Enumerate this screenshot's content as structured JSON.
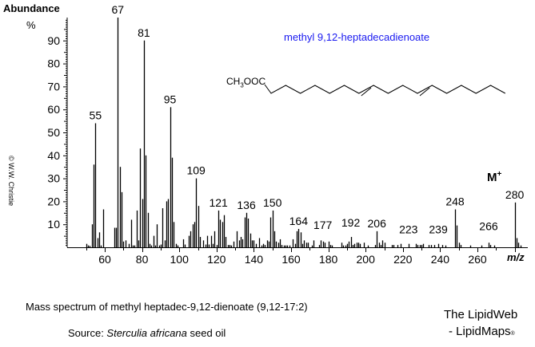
{
  "header": {
    "y_axis_title": "Abundance",
    "y_axis_unit": "%",
    "compound_name": "methyl 9,12-heptadecadienoate",
    "structure_prefix": "CH",
    "structure_sub": "3",
    "structure_suffix": "OOC",
    "copyright": "© W.W. Christie"
  },
  "annotations": {
    "molecular_ion_label": "M",
    "molecular_ion_sup": "+",
    "x_axis_label": "m/z"
  },
  "footer": {
    "caption": "Mass spectrum of methyl heptadec-9,12-dienoate (9,12-17:2)",
    "source_prefix": "Source:  ",
    "source_species": "Sterculia africana",
    "source_suffix": " seed oil",
    "brand_line1": "The LipidWeb",
    "brand_line2": "- LipidMaps",
    "brand_mark": "®"
  },
  "colors": {
    "compound_name": "#1a1af0",
    "bars": "#000000",
    "axis": "#000000"
  },
  "chart_data": {
    "type": "bar",
    "title": "Mass spectrum of methyl heptadec-9,12-dienoate (9,12-17:2)",
    "xlabel": "m/z",
    "ylabel": "Abundance %",
    "xlim": [
      40,
      287
    ],
    "ylim": [
      0,
      100
    ],
    "x_ticks": [
      60,
      80,
      100,
      120,
      140,
      160,
      180,
      200,
      220,
      240,
      260
    ],
    "y_ticks": [
      10,
      20,
      30,
      40,
      50,
      60,
      70,
      80,
      90
    ],
    "grid": false,
    "labeled_peaks": [
      55,
      67,
      81,
      95,
      109,
      121,
      136,
      150,
      164,
      177,
      192,
      206,
      223,
      239,
      248,
      266,
      280
    ],
    "peaks": [
      {
        "mz": 50,
        "ab": 1.5
      },
      {
        "mz": 51,
        "ab": 0.8
      },
      {
        "mz": 52,
        "ab": 0.6
      },
      {
        "mz": 53,
        "ab": 10
      },
      {
        "mz": 54,
        "ab": 36
      },
      {
        "mz": 55,
        "ab": 54
      },
      {
        "mz": 56,
        "ab": 4
      },
      {
        "mz": 57,
        "ab": 6.5
      },
      {
        "mz": 58,
        "ab": 0.8
      },
      {
        "mz": 59,
        "ab": 16.5
      },
      {
        "mz": 65,
        "ab": 8.5
      },
      {
        "mz": 66,
        "ab": 8.5
      },
      {
        "mz": 67,
        "ab": 100
      },
      {
        "mz": 68,
        "ab": 35
      },
      {
        "mz": 69,
        "ab": 24
      },
      {
        "mz": 70,
        "ab": 2.5
      },
      {
        "mz": 71,
        "ab": 3
      },
      {
        "mz": 73,
        "ab": 1.5
      },
      {
        "mz": 74,
        "ab": 12
      },
      {
        "mz": 75,
        "ab": 0.8
      },
      {
        "mz": 76,
        "ab": 0.8
      },
      {
        "mz": 77,
        "ab": 16
      },
      {
        "mz": 78,
        "ab": 3
      },
      {
        "mz": 79,
        "ab": 43
      },
      {
        "mz": 80,
        "ab": 21
      },
      {
        "mz": 81,
        "ab": 90
      },
      {
        "mz": 82,
        "ab": 40
      },
      {
        "mz": 83,
        "ab": 15
      },
      {
        "mz": 84,
        "ab": 1.5
      },
      {
        "mz": 85,
        "ab": 0.8
      },
      {
        "mz": 86,
        "ab": 5
      },
      {
        "mz": 87,
        "ab": 0.8
      },
      {
        "mz": 88,
        "ab": 10
      },
      {
        "mz": 89,
        "ab": 0.8
      },
      {
        "mz": 90,
        "ab": 1.2
      },
      {
        "mz": 91,
        "ab": 17
      },
      {
        "mz": 92,
        "ab": 3
      },
      {
        "mz": 93,
        "ab": 20
      },
      {
        "mz": 94,
        "ab": 21
      },
      {
        "mz": 95,
        "ab": 61
      },
      {
        "mz": 96,
        "ab": 39
      },
      {
        "mz": 97,
        "ab": 11
      },
      {
        "mz": 98,
        "ab": 1.5
      },
      {
        "mz": 99,
        "ab": 0.8
      },
      {
        "mz": 102,
        "ab": 3.5
      },
      {
        "mz": 103,
        "ab": 1.2
      },
      {
        "mz": 105,
        "ab": 5
      },
      {
        "mz": 106,
        "ab": 7
      },
      {
        "mz": 107,
        "ab": 10
      },
      {
        "mz": 108,
        "ab": 11
      },
      {
        "mz": 109,
        "ab": 30
      },
      {
        "mz": 110,
        "ab": 18
      },
      {
        "mz": 111,
        "ab": 4.5
      },
      {
        "mz": 113,
        "ab": 3
      },
      {
        "mz": 114,
        "ab": 1.2
      },
      {
        "mz": 115,
        "ab": 5
      },
      {
        "mz": 116,
        "ab": 1.2
      },
      {
        "mz": 117,
        "ab": 5
      },
      {
        "mz": 118,
        "ab": 1.5
      },
      {
        "mz": 119,
        "ab": 7
      },
      {
        "mz": 120,
        "ab": 1
      },
      {
        "mz": 121,
        "ab": 16
      },
      {
        "mz": 122,
        "ab": 12
      },
      {
        "mz": 123,
        "ab": 11
      },
      {
        "mz": 124,
        "ab": 14
      },
      {
        "mz": 125,
        "ab": 4.5
      },
      {
        "mz": 126,
        "ab": 1
      },
      {
        "mz": 127,
        "ab": 1
      },
      {
        "mz": 128,
        "ab": 0.8
      },
      {
        "mz": 129,
        "ab": 2.5
      },
      {
        "mz": 131,
        "ab": 7
      },
      {
        "mz": 132,
        "ab": 3
      },
      {
        "mz": 133,
        "ab": 4.5
      },
      {
        "mz": 134,
        "ab": 3.5
      },
      {
        "mz": 135,
        "ab": 13
      },
      {
        "mz": 136,
        "ab": 15
      },
      {
        "mz": 137,
        "ab": 12.5
      },
      {
        "mz": 138,
        "ab": 6
      },
      {
        "mz": 139,
        "ab": 3
      },
      {
        "mz": 140,
        "ab": 3
      },
      {
        "mz": 141,
        "ab": 1.5
      },
      {
        "mz": 143,
        "ab": 4
      },
      {
        "mz": 144,
        "ab": 0.8
      },
      {
        "mz": 145,
        "ab": 1.5
      },
      {
        "mz": 146,
        "ab": 1
      },
      {
        "mz": 147,
        "ab": 3
      },
      {
        "mz": 148,
        "ab": 2.5
      },
      {
        "mz": 149,
        "ab": 13
      },
      {
        "mz": 150,
        "ab": 16
      },
      {
        "mz": 151,
        "ab": 7
      },
      {
        "mz": 152,
        "ab": 2.5
      },
      {
        "mz": 153,
        "ab": 2
      },
      {
        "mz": 154,
        "ab": 3.5
      },
      {
        "mz": 155,
        "ab": 1
      },
      {
        "mz": 156,
        "ab": 0.8
      },
      {
        "mz": 157,
        "ab": 0.8
      },
      {
        "mz": 158,
        "ab": 0.8
      },
      {
        "mz": 159,
        "ab": 0.8
      },
      {
        "mz": 161,
        "ab": 3.5
      },
      {
        "mz": 162,
        "ab": 1.5
      },
      {
        "mz": 163,
        "ab": 7
      },
      {
        "mz": 164,
        "ab": 8
      },
      {
        "mz": 165,
        "ab": 6.5
      },
      {
        "mz": 166,
        "ab": 1.5
      },
      {
        "mz": 167,
        "ab": 3
      },
      {
        "mz": 168,
        "ab": 2
      },
      {
        "mz": 169,
        "ab": 2
      },
      {
        "mz": 171,
        "ab": 0.8
      },
      {
        "mz": 172,
        "ab": 3
      },
      {
        "mz": 175,
        "ab": 1
      },
      {
        "mz": 176,
        "ab": 3
      },
      {
        "mz": 177,
        "ab": 2.5
      },
      {
        "mz": 178,
        "ab": 2
      },
      {
        "mz": 180,
        "ab": 2.5
      },
      {
        "mz": 181,
        "ab": 1
      },
      {
        "mz": 182,
        "ab": 0.8
      },
      {
        "mz": 187,
        "ab": 2
      },
      {
        "mz": 188,
        "ab": 0.8
      },
      {
        "mz": 189,
        "ab": 0.8
      },
      {
        "mz": 190,
        "ab": 1.5
      },
      {
        "mz": 191,
        "ab": 2.5
      },
      {
        "mz": 192,
        "ab": 4.5
      },
      {
        "mz": 193,
        "ab": 1
      },
      {
        "mz": 194,
        "ab": 1.5
      },
      {
        "mz": 195,
        "ab": 2
      },
      {
        "mz": 196,
        "ab": 2
      },
      {
        "mz": 197,
        "ab": 1.5
      },
      {
        "mz": 199,
        "ab": 2
      },
      {
        "mz": 201,
        "ab": 0.8
      },
      {
        "mz": 205,
        "ab": 1
      },
      {
        "mz": 206,
        "ab": 7
      },
      {
        "mz": 207,
        "ab": 2
      },
      {
        "mz": 208,
        "ab": 1
      },
      {
        "mz": 209,
        "ab": 3
      },
      {
        "mz": 210,
        "ab": 2
      },
      {
        "mz": 214,
        "ab": 1
      },
      {
        "mz": 215,
        "ab": 1
      },
      {
        "mz": 217,
        "ab": 1
      },
      {
        "mz": 219,
        "ab": 1.5
      },
      {
        "mz": 223,
        "ab": 1.5
      },
      {
        "mz": 227,
        "ab": 1.5
      },
      {
        "mz": 228,
        "ab": 1
      },
      {
        "mz": 229,
        "ab": 1
      },
      {
        "mz": 230,
        "ab": 1
      },
      {
        "mz": 231,
        "ab": 1.5
      },
      {
        "mz": 234,
        "ab": 1
      },
      {
        "mz": 235,
        "ab": 1
      },
      {
        "mz": 237,
        "ab": 1
      },
      {
        "mz": 239,
        "ab": 1.5
      },
      {
        "mz": 241,
        "ab": 1
      },
      {
        "mz": 243,
        "ab": 0.8
      },
      {
        "mz": 248,
        "ab": 16.5
      },
      {
        "mz": 249,
        "ab": 9.5
      },
      {
        "mz": 250,
        "ab": 2
      },
      {
        "mz": 251,
        "ab": 1
      },
      {
        "mz": 256,
        "ab": 0.8
      },
      {
        "mz": 262,
        "ab": 0.8
      },
      {
        "mz": 266,
        "ab": 2
      },
      {
        "mz": 267,
        "ab": 1
      },
      {
        "mz": 269,
        "ab": 0.8
      },
      {
        "mz": 280,
        "ab": 19.5
      },
      {
        "mz": 281,
        "ab": 4
      },
      {
        "mz": 282,
        "ab": 2
      },
      {
        "mz": 283,
        "ab": 0.8
      }
    ]
  }
}
